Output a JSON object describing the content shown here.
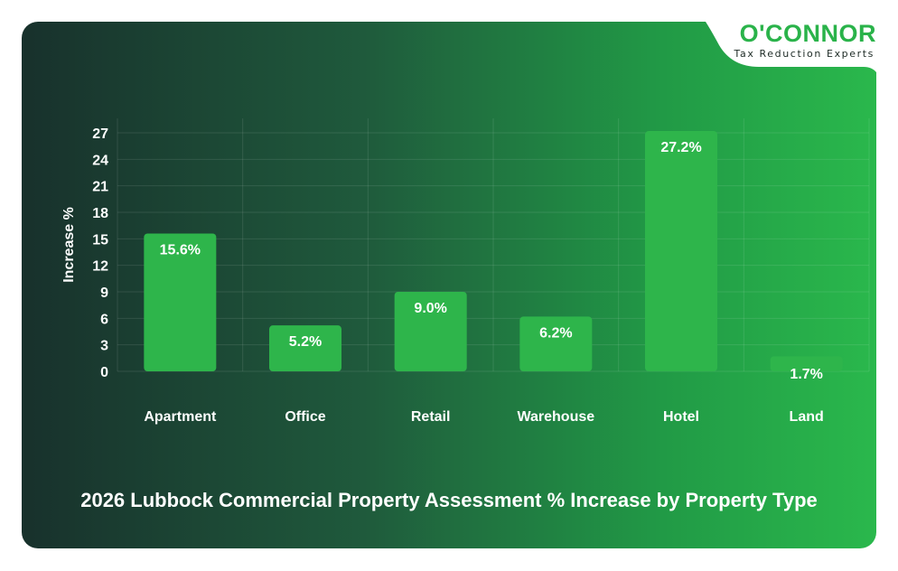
{
  "brand": {
    "name": "O'CONNOR",
    "tagline": "Tax Reduction Experts"
  },
  "colors": {
    "bar": "#2eb54b",
    "brand_green": "#2ab34a",
    "background_dark": "#18312c",
    "background_light": "#2ab84c"
  },
  "chart_data": {
    "type": "bar",
    "title": "2026 Lubbock Commercial Property Assessment % Increase by Property Type",
    "xlabel": "",
    "ylabel": "Increase %",
    "categories": [
      "Apartment",
      "Office",
      "Retail",
      "Warehouse",
      "Hotel",
      "Land"
    ],
    "values": [
      15.6,
      5.2,
      9.0,
      6.2,
      27.2,
      1.7
    ],
    "data_labels": [
      "15.6%",
      "5.2%",
      "9.0%",
      "6.2%",
      "27.2%",
      "1.7%"
    ],
    "yticks": [
      0,
      3,
      6,
      9,
      12,
      15,
      18,
      21,
      24,
      27
    ],
    "ylim": [
      0,
      27
    ],
    "grid": true,
    "legend": "none"
  }
}
